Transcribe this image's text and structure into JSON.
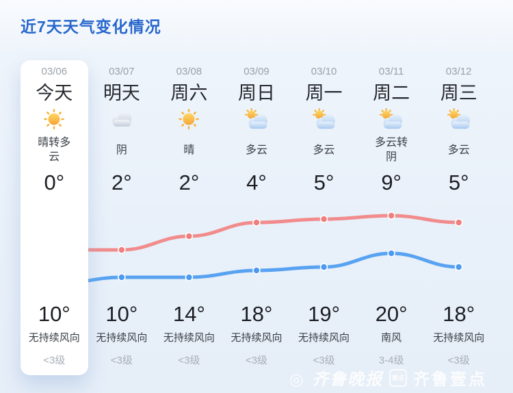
{
  "page": {
    "title": "近7天天气变化情况"
  },
  "colors": {
    "title_blue": "#2767cd",
    "background": "#e8f0f9",
    "today_card": "#ffffff",
    "red_line": "#f28c8c",
    "blue_line": "#58a2f2",
    "date_gray": "#9aa1ab",
    "level_gray": "#a8aeb8"
  },
  "days": [
    {
      "date": "03/06",
      "label": "今天",
      "icon": "sunny-icon",
      "desc": "晴转多云",
      "temp_upper": "0°",
      "temp_lower": "10°",
      "wind_dir": "无持续风向",
      "wind_level": "<3级",
      "highlight": true
    },
    {
      "date": "03/07",
      "label": "明天",
      "icon": "overcast-icon",
      "desc": "阴",
      "temp_upper": "2°",
      "temp_lower": "10°",
      "wind_dir": "无持续风向",
      "wind_level": "<3级",
      "highlight": false
    },
    {
      "date": "03/08",
      "label": "周六",
      "icon": "sunny-icon",
      "desc": "晴",
      "temp_upper": "2°",
      "temp_lower": "14°",
      "wind_dir": "无持续风向",
      "wind_level": "<3级",
      "highlight": false
    },
    {
      "date": "03/09",
      "label": "周日",
      "icon": "partly-cloudy-icon",
      "desc": "多云",
      "temp_upper": "4°",
      "temp_lower": "18°",
      "wind_dir": "无持续风向",
      "wind_level": "<3级",
      "highlight": false
    },
    {
      "date": "03/10",
      "label": "周一",
      "icon": "partly-cloudy-icon",
      "desc": "多云",
      "temp_upper": "5°",
      "temp_lower": "19°",
      "wind_dir": "无持续风向",
      "wind_level": "<3级",
      "highlight": false
    },
    {
      "date": "03/11",
      "label": "周二",
      "icon": "partly-cloudy-icon",
      "desc": "多云转阴",
      "temp_upper": "9°",
      "temp_lower": "20°",
      "wind_dir": "南风",
      "wind_level": "3-4级",
      "highlight": false
    },
    {
      "date": "03/12",
      "label": "周三",
      "icon": "partly-cloudy-icon",
      "desc": "多云",
      "temp_upper": "5°",
      "temp_lower": "18°",
      "wind_dir": "无持续风向",
      "wind_level": "<3级",
      "highlight": false
    }
  ],
  "chart_data": {
    "type": "line",
    "categories": [
      "03/06",
      "03/07",
      "03/08",
      "03/09",
      "03/10",
      "03/11",
      "03/12"
    ],
    "series": [
      {
        "name": "red-line-lower-temps-row",
        "values": [
          10,
          10,
          14,
          18,
          19,
          20,
          18
        ],
        "color": "#f28c8c",
        "point_color": "#ef7e7e"
      },
      {
        "name": "blue-line-upper-temps-row",
        "values": [
          0,
          2,
          2,
          4,
          5,
          9,
          5
        ],
        "color": "#58a2f2",
        "point_color": "#4d9bf0"
      }
    ],
    "title": "",
    "xlabel": "",
    "ylabel": "",
    "ylim": [
      -4,
      25
    ],
    "grid": false,
    "legend": false,
    "point_style": "filled-circle-white-ring",
    "smooth": true
  },
  "watermark": {
    "copyright": "◎",
    "brand1": "齐鲁晚报",
    "badge": "壹点",
    "brand2": "齐鲁壹点"
  }
}
